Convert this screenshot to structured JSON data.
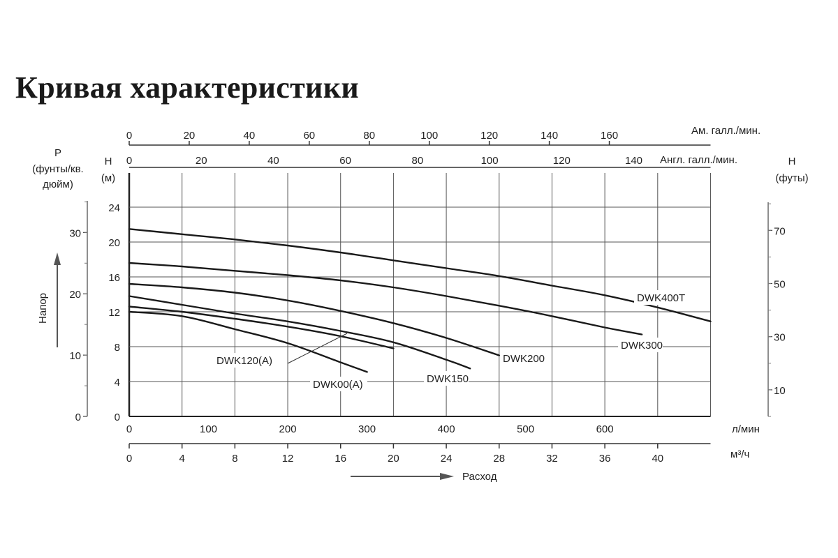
{
  "title": "Кривая характеристики",
  "axes": {
    "top_us": {
      "label": "Ам. галл./мин.",
      "ticks": [
        "0",
        "20",
        "40",
        "60",
        "80",
        "100",
        "120",
        "140",
        "160"
      ]
    },
    "top_uk": {
      "label": "Англ. галл./мин.",
      "ticks": [
        "0",
        "20",
        "40",
        "60",
        "80",
        "100",
        "120",
        "140"
      ]
    },
    "left_p": {
      "label_line1": "P",
      "label_line2": "(фунты/кв.",
      "label_line3": "дюйм)",
      "ticks": [
        "0",
        "10",
        "20",
        "30"
      ]
    },
    "left_h": {
      "label_line1": "H",
      "label_line2": "(м)",
      "ticks": [
        "0",
        "4",
        "8",
        "12",
        "16",
        "20",
        "24"
      ]
    },
    "right_h": {
      "label_line1": "H",
      "label_line2": "(футы)",
      "ticks": [
        "10",
        "30",
        "50",
        "70"
      ]
    },
    "bottom_lmin": {
      "label": "л/мин",
      "ticks": [
        "0",
        "100",
        "200",
        "300",
        "400",
        "500",
        "600"
      ]
    },
    "bottom_m3h": {
      "label": "м³/ч",
      "ticks": [
        "0",
        "4",
        "8",
        "12",
        "16",
        "20",
        "24",
        "28",
        "32",
        "36",
        "40"
      ]
    },
    "head_arrow_label": "Напор",
    "flow_arrow_label": "Расход"
  },
  "chart_data": {
    "type": "line",
    "xlabel": "Расход",
    "ylabel": "Напор",
    "x_unit": "м³/ч",
    "y_unit": "м",
    "xlim": [
      0,
      44
    ],
    "ylim": [
      0,
      26
    ],
    "grid": true,
    "series": [
      {
        "name": "DWK00(A)",
        "x": [
          0,
          4,
          8,
          12,
          16,
          18
        ],
        "y": [
          12.0,
          11.5,
          10.0,
          8.4,
          6.2,
          5.1
        ]
      },
      {
        "name": "DWK120(A)",
        "x": [
          0,
          4,
          8,
          12,
          16,
          20
        ],
        "y": [
          12.6,
          12.0,
          11.2,
          10.3,
          9.2,
          7.8
        ]
      },
      {
        "name": "DWK150",
        "x": [
          0,
          4,
          8,
          12,
          16,
          20,
          24,
          25.8
        ],
        "y": [
          13.8,
          12.8,
          11.8,
          10.9,
          9.8,
          8.5,
          6.5,
          5.5
        ]
      },
      {
        "name": "DWK200",
        "x": [
          0,
          4,
          8,
          12,
          16,
          20,
          24,
          28
        ],
        "y": [
          15.2,
          14.8,
          14.2,
          13.3,
          12.1,
          10.7,
          9.0,
          7.0
        ]
      },
      {
        "name": "DWK300",
        "x": [
          0,
          4,
          8,
          12,
          16,
          20,
          24,
          28,
          32,
          36,
          38.8
        ],
        "y": [
          17.6,
          17.2,
          16.7,
          16.2,
          15.6,
          14.8,
          13.8,
          12.7,
          11.5,
          10.2,
          9.4
        ]
      },
      {
        "name": "DWK400T",
        "x": [
          0,
          4,
          8,
          12,
          16,
          20,
          24,
          28,
          32,
          36,
          40,
          44
        ],
        "y": [
          21.5,
          20.9,
          20.3,
          19.6,
          18.8,
          17.9,
          17.0,
          16.1,
          15.0,
          13.9,
          12.5,
          10.9
        ]
      }
    ]
  }
}
